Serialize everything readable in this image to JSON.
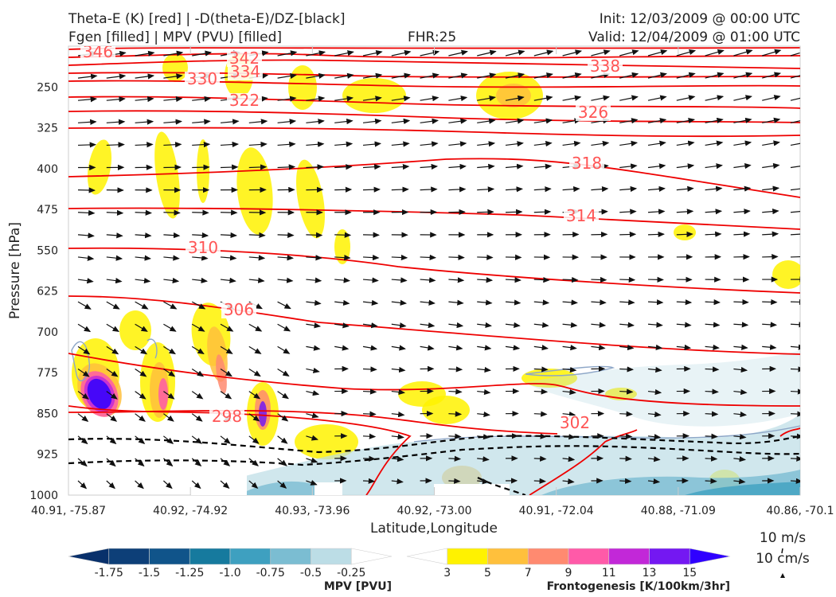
{
  "header": {
    "title_left_1": "Theta-E (K) [red] | -D(theta-E)/DZ-[black]",
    "title_left_2": "Fgen [filled] | MPV (PVU) [filled]",
    "fhr": "FHR:25",
    "init": "Init: 12/03/2009 @ 00:00 UTC",
    "valid": "Valid: 12/04/2009 @ 01:00 UTC"
  },
  "chart_data": {
    "type": "cross-section",
    "xlabel": "Latitude,Longitude",
    "ylabel": "Pressure [hPa]",
    "x_tick_labels": [
      "40.91, -75.87",
      "40.92, -74.92",
      "40.93, -73.96",
      "40.92, -73.00",
      "40.91, -72.04",
      "40.88, -71.09",
      "40.86, -70.1"
    ],
    "y_tick_labels": [
      "250",
      "325",
      "400",
      "475",
      "550",
      "625",
      "700",
      "775",
      "850",
      "925",
      "1000"
    ],
    "ylim": [
      1000,
      175
    ],
    "y_scale": "linear (inverted)",
    "theta_e_contour_labels": [
      "346",
      "342",
      "334",
      "330",
      "322",
      "338",
      "326",
      "318",
      "314",
      "310",
      "306",
      "302",
      "298"
    ],
    "mpv_colorbar": {
      "title": "MPV [PVU]",
      "tick_labels": [
        "-1.75",
        "-1.5",
        "-1.25",
        "-1.0",
        "-0.75",
        "-0.5",
        "-0.25"
      ],
      "colors": [
        "#08306b",
        "#0d3f78",
        "#10548a",
        "#167a9e",
        "#3ea0c0",
        "#7bbdd2",
        "#bcdde6",
        "#ffffff"
      ]
    },
    "fgen_colorbar": {
      "title": "Frontogenesis [K/100km/3hr]",
      "tick_labels": [
        "3",
        "5",
        "7",
        "9",
        "11",
        "13",
        "15"
      ],
      "colors": [
        "#ffffff",
        "#fff200",
        "#ffc03c",
        "#ff8a70",
        "#ff5aa8",
        "#c228d8",
        "#7418f2",
        "#2f00ff"
      ]
    },
    "reference_vector": {
      "horizontal": "10 m/s",
      "vertical": "10 cm/s"
    }
  }
}
